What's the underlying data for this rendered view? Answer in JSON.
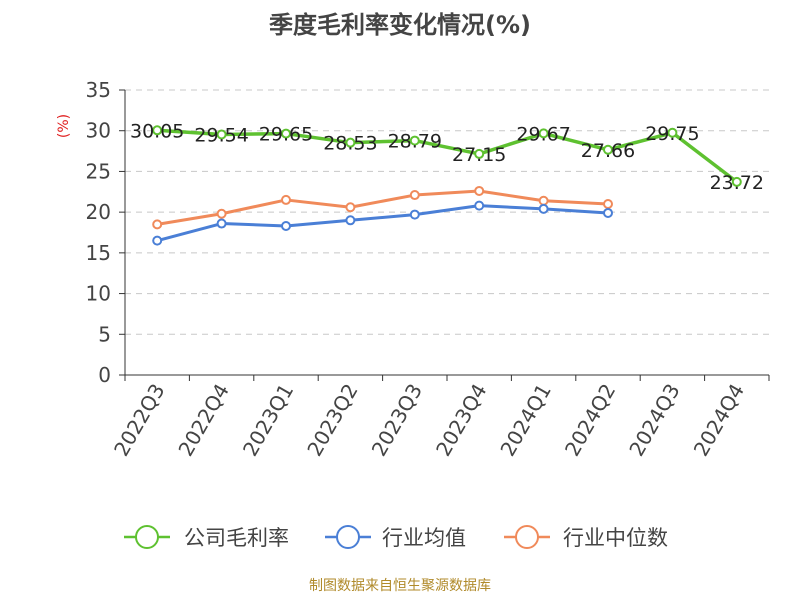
{
  "chart_data": {
    "type": "line",
    "title": "季度毛利率变化情况(%)",
    "ylabel": "(%)",
    "xlabel": "",
    "ylim": [
      0,
      35
    ],
    "yticks": [
      0,
      5,
      10,
      15,
      20,
      25,
      30,
      35
    ],
    "grid": true,
    "legend_position": "bottom",
    "categories": [
      "2022Q3",
      "2022Q4",
      "2023Q1",
      "2023Q2",
      "2023Q3",
      "2023Q4",
      "2024Q1",
      "2024Q2",
      "2024Q3",
      "2024Q4"
    ],
    "series": [
      {
        "name": "公司毛利率",
        "color": "#5ec130",
        "values": [
          30.05,
          29.54,
          29.65,
          28.53,
          28.79,
          27.15,
          29.67,
          27.66,
          29.75,
          23.72
        ],
        "labels": [
          "30.05",
          "29.54",
          "29.65",
          "28.53",
          "28.79",
          "27.15",
          "29.67",
          "27.66",
          "29.75",
          "23.72"
        ]
      },
      {
        "name": "行业均值",
        "color": "#4a7fd6",
        "values": [
          16.5,
          18.6,
          18.3,
          19.0,
          19.7,
          20.8,
          20.4,
          19.9,
          null,
          null
        ]
      },
      {
        "name": "行业中位数",
        "color": "#f08a5a",
        "values": [
          18.5,
          19.8,
          21.5,
          20.6,
          22.1,
          22.6,
          21.4,
          21.0,
          null,
          null
        ]
      }
    ]
  },
  "source": "制图数据来自恒生聚源数据库"
}
